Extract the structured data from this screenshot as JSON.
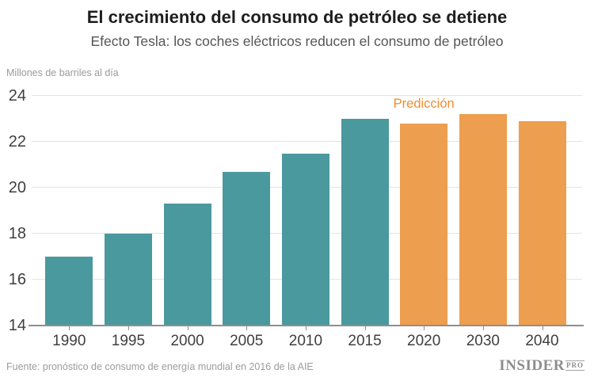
{
  "header": {
    "title": "El crecimiento del consumo de petróleo se detiene",
    "subtitle": "Efecto Tesla: los coches eléctricos reducen el consumo de petróleo"
  },
  "chart_data": {
    "type": "bar",
    "title": "El crecimiento del consumo de petróleo se detiene",
    "subtitle": "Efecto Tesla: los coches eléctricos reducen el consumo de petróleo",
    "ylabel": "Millones de barriles al día",
    "xlabel": "",
    "categories": [
      "1990",
      "1995",
      "2000",
      "2005",
      "2010",
      "2015",
      "2020",
      "2030",
      "2040"
    ],
    "values": [
      17.0,
      18.0,
      19.3,
      20.7,
      21.5,
      23.0,
      22.8,
      23.2,
      22.9
    ],
    "ylim": [
      14,
      24
    ],
    "yticks": [
      14,
      16,
      18,
      20,
      22,
      24
    ],
    "grid": true,
    "legend_position": "none",
    "annotation": "Predicción",
    "annotation_over_category": "2020",
    "prediction_start_index": 6,
    "colors": {
      "historical": "#4a999e",
      "prediction": "#ed9e4f",
      "annotation_text": "#f08c2e"
    }
  },
  "footer": {
    "source": "Fuente: pronóstico de consumo de energía mundial en 2016 de la AIE",
    "logo_text": "INSIDER",
    "logo_suffix": "PRO"
  }
}
